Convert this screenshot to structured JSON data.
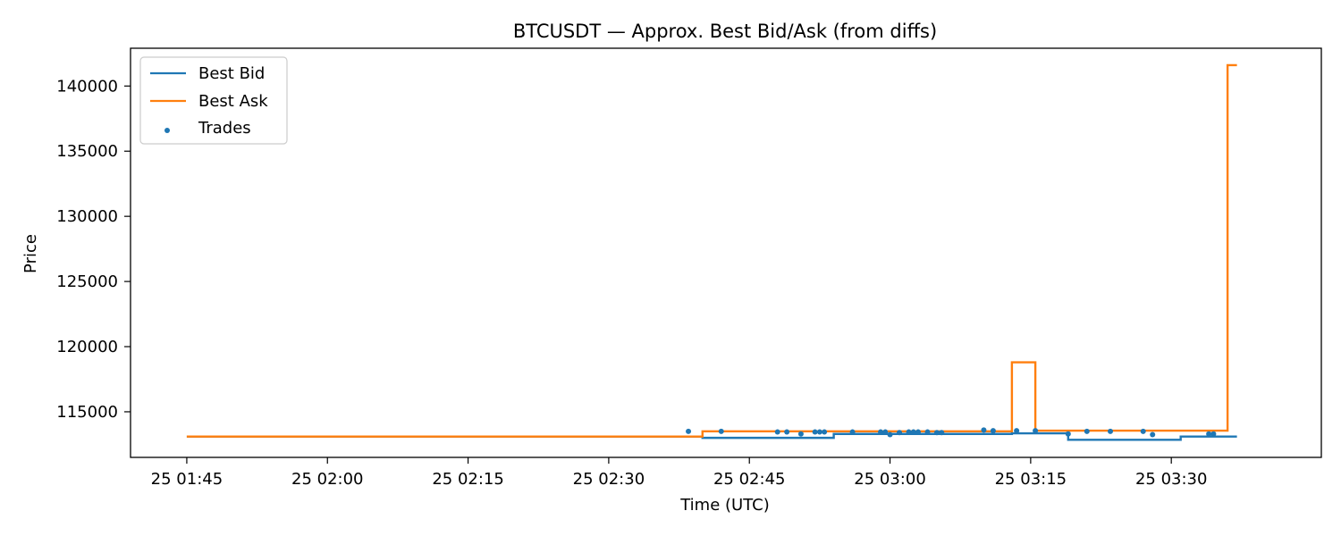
{
  "chart_data": {
    "type": "line",
    "title": "BTCUSDT — Approx. Best Bid/Ask (from diffs)",
    "xlabel": "Time (UTC)",
    "ylabel": "Price",
    "x_ticks": [
      {
        "t": "01:45",
        "label": "25 01:45"
      },
      {
        "t": "02:00",
        "label": "25 02:00"
      },
      {
        "t": "02:15",
        "label": "25 02:15"
      },
      {
        "t": "02:30",
        "label": "25 02:30"
      },
      {
        "t": "02:45",
        "label": "25 02:45"
      },
      {
        "t": "03:00",
        "label": "25 03:00"
      },
      {
        "t": "03:15",
        "label": "25 03:15"
      },
      {
        "t": "03:30",
        "label": "25 03:30"
      }
    ],
    "xlim": [
      "01:39",
      "03:46"
    ],
    "ylim": [
      111500,
      142900
    ],
    "y_ticks": [
      {
        "v": 115000,
        "label": "115000"
      },
      {
        "v": 120000,
        "label": "120000"
      },
      {
        "v": 125000,
        "label": "125000"
      },
      {
        "v": 130000,
        "label": "130000"
      },
      {
        "v": 135000,
        "label": "135000"
      },
      {
        "v": 140000,
        "label": "140000"
      }
    ],
    "grid": false,
    "legend_position": "top-left",
    "series": [
      {
        "name": "Best Bid",
        "kind": "step",
        "color": "#1f77b4",
        "points": [
          [
            "01:45",
            113100
          ],
          [
            "02:40",
            113100
          ],
          [
            "02:40",
            113000
          ],
          [
            "02:54",
            113000
          ],
          [
            "02:54",
            113300
          ],
          [
            "03:13",
            113300
          ],
          [
            "03:13",
            113350
          ],
          [
            "03:19",
            113350
          ],
          [
            "03:19",
            112850
          ],
          [
            "03:31",
            112850
          ],
          [
            "03:31",
            113100
          ],
          [
            "03:37",
            113100
          ]
        ]
      },
      {
        "name": "Best Ask",
        "kind": "step",
        "color": "#ff7f0e",
        "points": [
          [
            "01:45",
            113100
          ],
          [
            "02:40",
            113100
          ],
          [
            "02:40",
            113500
          ],
          [
            "03:13",
            113500
          ],
          [
            "03:13",
            118800
          ],
          [
            "03:15.5",
            118800
          ],
          [
            "03:15.5",
            113550
          ],
          [
            "03:36",
            113550
          ],
          [
            "03:36",
            141600
          ],
          [
            "03:37",
            141600
          ]
        ]
      },
      {
        "name": "Trades",
        "kind": "scatter",
        "color": "#1f77b4",
        "points": [
          [
            "02:38.5",
            113500
          ],
          [
            "02:42",
            113500
          ],
          [
            "02:48",
            113450
          ],
          [
            "02:49",
            113450
          ],
          [
            "02:50.5",
            113300
          ],
          [
            "02:52",
            113450
          ],
          [
            "02:52.5",
            113450
          ],
          [
            "02:53",
            113450
          ],
          [
            "02:56",
            113450
          ],
          [
            "02:59",
            113450
          ],
          [
            "02:59.5",
            113450
          ],
          [
            "03:00",
            113250
          ],
          [
            "03:01",
            113400
          ],
          [
            "03:02",
            113450
          ],
          [
            "03:02.5",
            113450
          ],
          [
            "03:03",
            113450
          ],
          [
            "03:04",
            113450
          ],
          [
            "03:05",
            113400
          ],
          [
            "03:05.5",
            113400
          ],
          [
            "03:10",
            113600
          ],
          [
            "03:11",
            113550
          ],
          [
            "03:13.5",
            113550
          ],
          [
            "03:15.5",
            113550
          ],
          [
            "03:19",
            113300
          ],
          [
            "03:21",
            113500
          ],
          [
            "03:23.5",
            113500
          ],
          [
            "03:27",
            113500
          ],
          [
            "03:28",
            113250
          ],
          [
            "03:34",
            113300
          ],
          [
            "03:34.5",
            113300
          ]
        ]
      }
    ]
  }
}
